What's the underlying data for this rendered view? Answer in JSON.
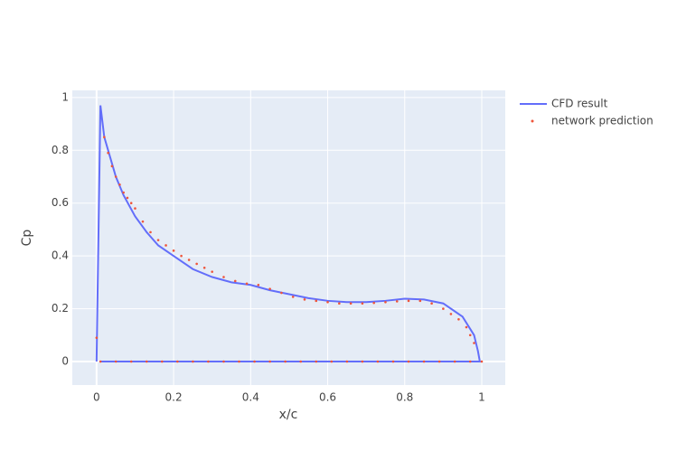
{
  "chart_data": {
    "type": "line",
    "x_label": "x/c",
    "y_label": "Cp",
    "xlim": [
      -0.063,
      1.061
    ],
    "ylim": [
      -0.089,
      1.027
    ],
    "xticks": [
      0,
      0.2,
      0.4,
      0.6,
      0.8,
      1
    ],
    "yticks": [
      0,
      0.2,
      0.4,
      0.6,
      0.8,
      1
    ],
    "grid": true,
    "legend": "right",
    "series": [
      {
        "name": "CFD result",
        "color": "#636efa",
        "mode": "line",
        "x": [
          0,
          0.01,
          0.02,
          0.03,
          0.05,
          0.07,
          0.1,
          0.13,
          0.16,
          0.2,
          0.25,
          0.3,
          0.35,
          0.4,
          0.45,
          0.5,
          0.55,
          0.6,
          0.65,
          0.7,
          0.75,
          0.8,
          0.85,
          0.9,
          0.95,
          0.98,
          0.99,
          0.995,
          0.5,
          0.01
        ],
        "values": [
          0,
          0.97,
          0.85,
          0.8,
          0.7,
          0.63,
          0.55,
          0.49,
          0.44,
          0.4,
          0.35,
          0.32,
          0.3,
          0.29,
          0.27,
          0.255,
          0.24,
          0.23,
          0.225,
          0.225,
          0.23,
          0.238,
          0.235,
          0.22,
          0.17,
          0.1,
          0.04,
          0,
          0,
          0
        ]
      },
      {
        "name": "network prediction",
        "color": "#ef553b",
        "mode": "markers",
        "x": [
          0,
          0.02,
          0.03,
          0.04,
          0.05,
          0.06,
          0.07,
          0.08,
          0.09,
          0.1,
          0.12,
          0.14,
          0.16,
          0.18,
          0.2,
          0.22,
          0.24,
          0.26,
          0.28,
          0.3,
          0.33,
          0.36,
          0.39,
          0.42,
          0.45,
          0.48,
          0.51,
          0.54,
          0.57,
          0.6,
          0.63,
          0.66,
          0.69,
          0.72,
          0.75,
          0.78,
          0.81,
          0.84,
          0.87,
          0.9,
          0.92,
          0.94,
          0.96,
          0.97,
          0.98,
          0.01,
          0.05,
          0.09,
          0.13,
          0.17,
          0.21,
          0.25,
          0.29,
          0.33,
          0.37,
          0.41,
          0.45,
          0.49,
          0.53,
          0.57,
          0.61,
          0.65,
          0.69,
          0.73,
          0.77,
          0.81,
          0.85,
          0.89,
          0.93,
          0.97,
          1.0
        ],
        "values": [
          0.09,
          0.85,
          0.79,
          0.74,
          0.7,
          0.67,
          0.64,
          0.62,
          0.6,
          0.58,
          0.53,
          0.49,
          0.46,
          0.44,
          0.42,
          0.4,
          0.385,
          0.37,
          0.355,
          0.34,
          0.32,
          0.305,
          0.295,
          0.29,
          0.275,
          0.26,
          0.245,
          0.235,
          0.23,
          0.225,
          0.22,
          0.22,
          0.22,
          0.222,
          0.225,
          0.228,
          0.23,
          0.23,
          0.22,
          0.2,
          0.18,
          0.16,
          0.13,
          0.1,
          0.07,
          0,
          0,
          0,
          0,
          0,
          0,
          0,
          0,
          0,
          0,
          0,
          0,
          0,
          0,
          0,
          0,
          0,
          0,
          0,
          0,
          0,
          0,
          0,
          0,
          0,
          0
        ]
      }
    ]
  }
}
